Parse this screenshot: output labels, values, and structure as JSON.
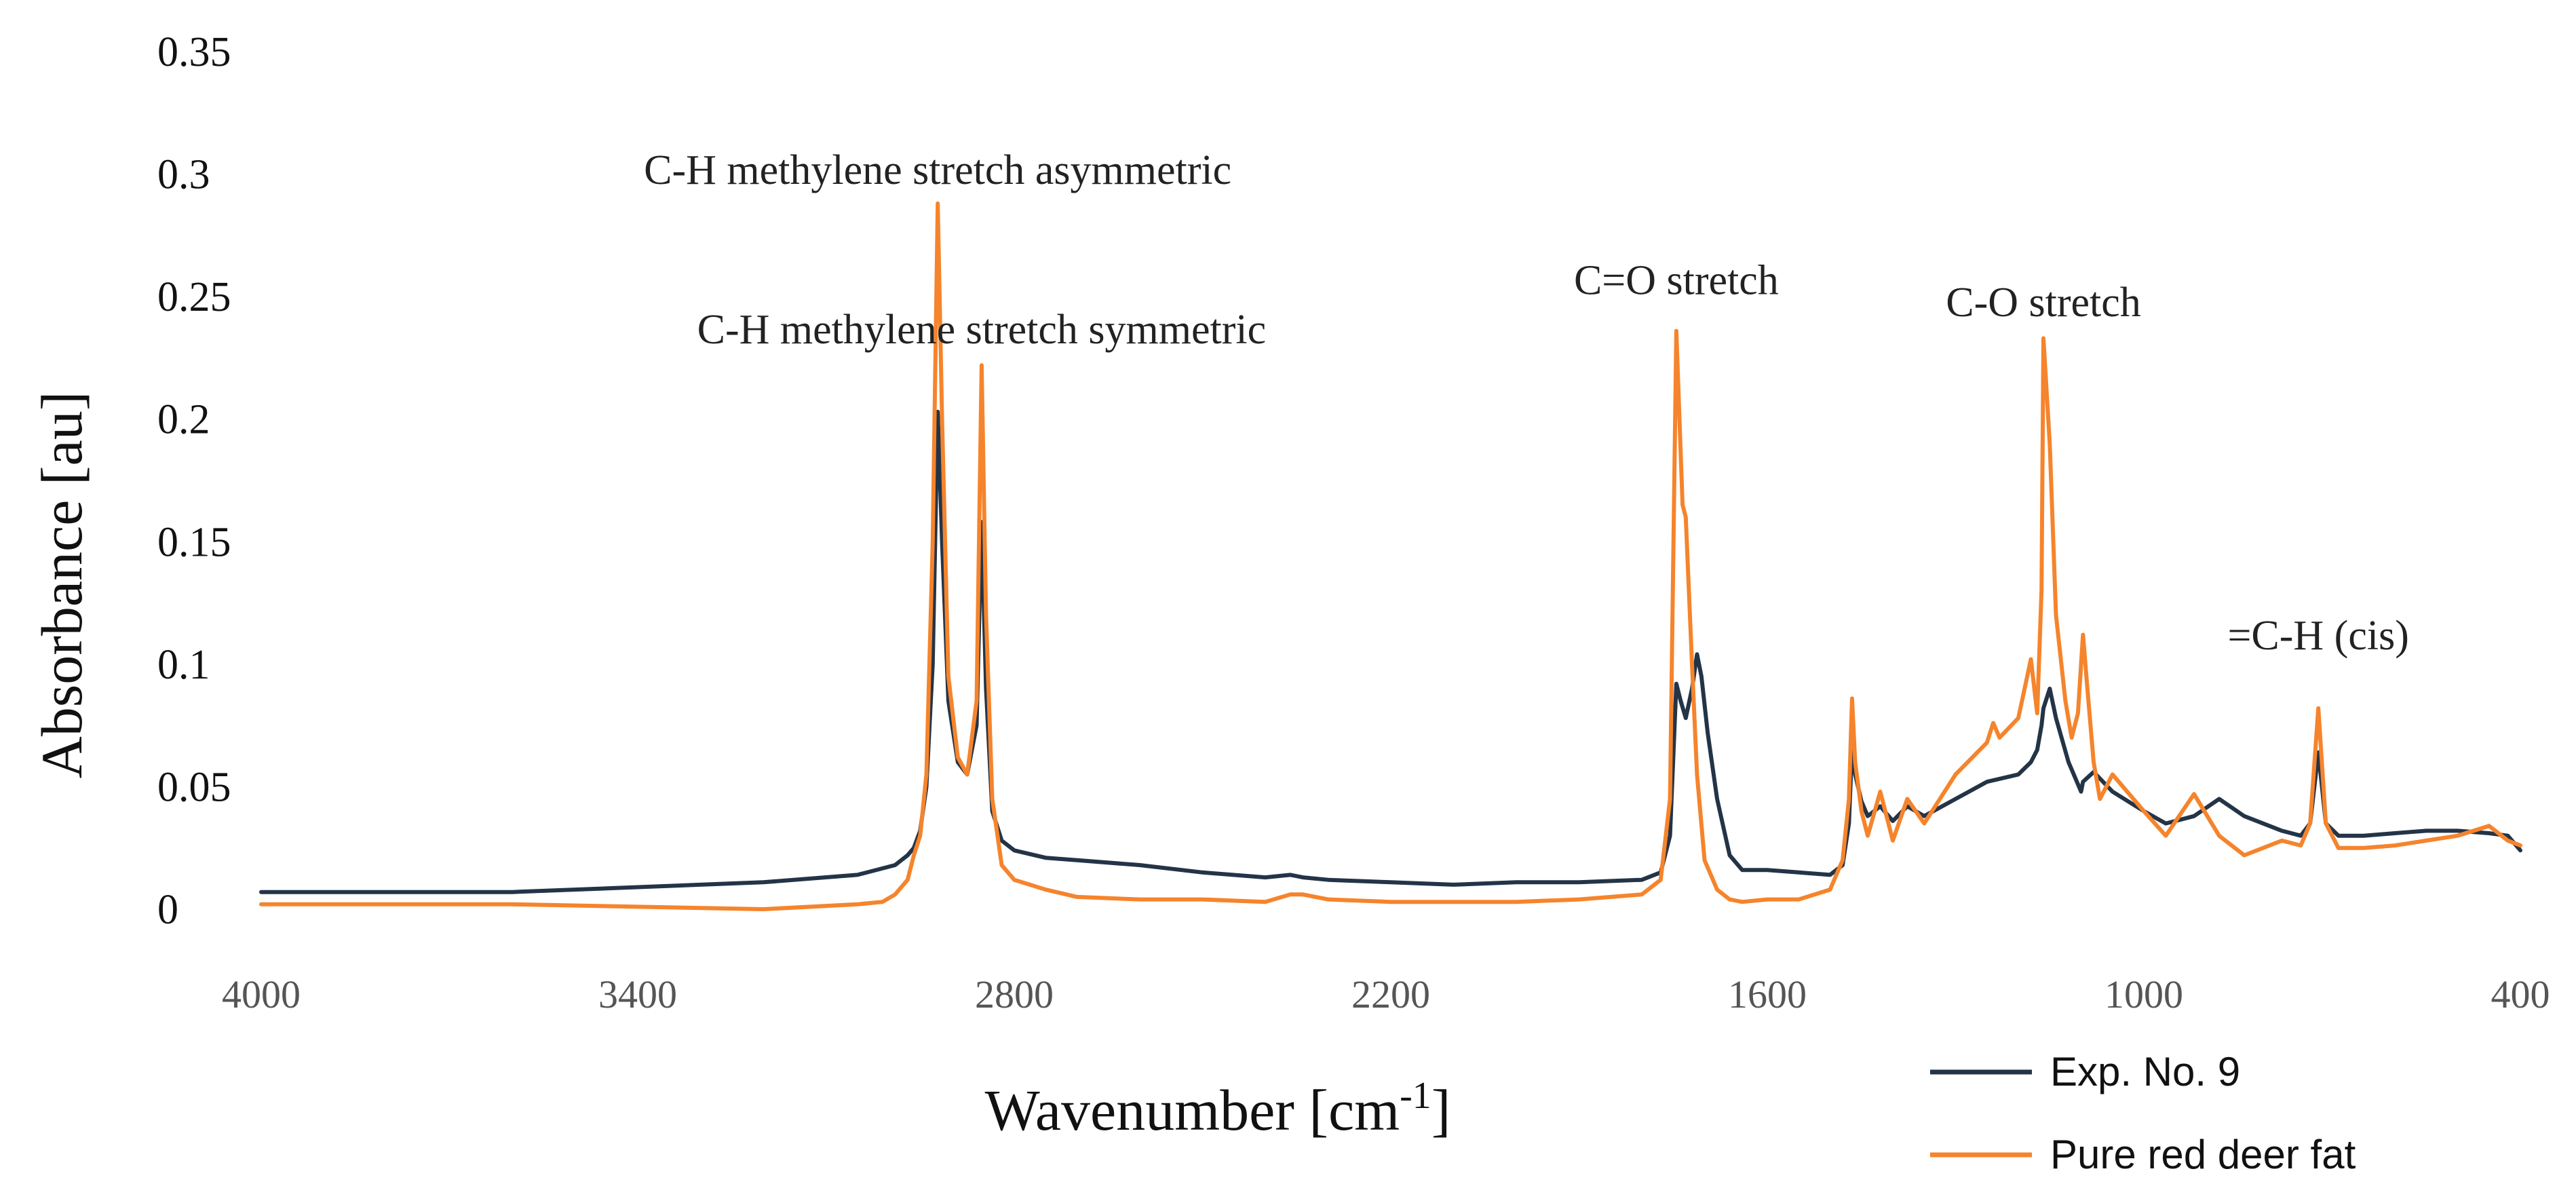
{
  "chart_data": {
    "type": "line",
    "xlabel": "Wavenumber [cm-1]",
    "xlabel_main": "Wavenumber [cm",
    "xlabel_sup": "-1",
    "xlabel_end": "]",
    "ylabel": "Absorbance [au]",
    "xlim": [
      4000,
      400
    ],
    "ylim": [
      0,
      0.35
    ],
    "x_ticks": [
      "4000",
      "3400",
      "2800",
      "2200",
      "1600",
      "1000",
      "400"
    ],
    "y_ticks": [
      "0",
      "0.05",
      "0.1",
      "0.15",
      "0.2",
      "0.25",
      "0.3",
      "0.35"
    ],
    "grid": false,
    "legend_position": "bottom-right",
    "annotations": [
      {
        "text": "C-H methylene stretch asymmetric",
        "x": 2922,
        "y": 0.296
      },
      {
        "text": "C-H methylene stretch symmetric",
        "x": 2852,
        "y": 0.231
      },
      {
        "text": "C=O stretch",
        "x": 1745,
        "y": 0.251
      },
      {
        "text": "C-O stretch",
        "x": 1160,
        "y": 0.242
      },
      {
        "text": "=C-H (cis)",
        "x": 722,
        "y": 0.106
      }
    ],
    "series": [
      {
        "name": "Exp. No. 9",
        "color": "#243447",
        "x": [
          4000,
          3800,
          3600,
          3400,
          3200,
          3050,
          2990,
          2970,
          2960,
          2950,
          2940,
          2930,
          2922,
          2915,
          2905,
          2890,
          2875,
          2860,
          2852,
          2845,
          2835,
          2820,
          2800,
          2750,
          2700,
          2600,
          2500,
          2400,
          2360,
          2340,
          2300,
          2200,
          2100,
          2000,
          1900,
          1800,
          1770,
          1755,
          1745,
          1738,
          1730,
          1720,
          1712,
          1705,
          1695,
          1680,
          1660,
          1640,
          1600,
          1550,
          1500,
          1480,
          1470,
          1465,
          1460,
          1450,
          1440,
          1420,
          1400,
          1377,
          1350,
          1300,
          1250,
          1200,
          1180,
          1170,
          1163,
          1160,
          1150,
          1140,
          1120,
          1100,
          1097,
          1080,
          1050,
          1000,
          965,
          920,
          880,
          840,
          780,
          750,
          735,
          722,
          710,
          690,
          650,
          600,
          550,
          500,
          450,
          420,
          400
        ],
        "values": [
          0.007,
          0.007,
          0.007,
          0.009,
          0.011,
          0.014,
          0.018,
          0.022,
          0.025,
          0.032,
          0.05,
          0.1,
          0.203,
          0.15,
          0.085,
          0.06,
          0.055,
          0.075,
          0.158,
          0.09,
          0.04,
          0.028,
          0.024,
          0.021,
          0.02,
          0.018,
          0.015,
          0.013,
          0.014,
          0.013,
          0.012,
          0.011,
          0.01,
          0.011,
          0.011,
          0.012,
          0.015,
          0.03,
          0.092,
          0.085,
          0.078,
          0.09,
          0.104,
          0.095,
          0.072,
          0.045,
          0.022,
          0.016,
          0.016,
          0.015,
          0.014,
          0.018,
          0.035,
          0.066,
          0.055,
          0.044,
          0.038,
          0.042,
          0.036,
          0.042,
          0.038,
          0.045,
          0.052,
          0.055,
          0.06,
          0.065,
          0.075,
          0.082,
          0.09,
          0.078,
          0.06,
          0.048,
          0.052,
          0.056,
          0.048,
          0.04,
          0.035,
          0.038,
          0.045,
          0.038,
          0.032,
          0.03,
          0.035,
          0.064,
          0.035,
          0.03,
          0.03,
          0.031,
          0.032,
          0.032,
          0.031,
          0.03,
          0.024
        ]
      },
      {
        "name": "Pure red deer fat",
        "color": "#f5842c",
        "x": [
          4000,
          3800,
          3600,
          3400,
          3200,
          3050,
          3010,
          2990,
          2970,
          2960,
          2950,
          2940,
          2930,
          2922,
          2915,
          2905,
          2890,
          2875,
          2860,
          2852,
          2845,
          2835,
          2820,
          2800,
          2750,
          2700,
          2600,
          2500,
          2400,
          2360,
          2340,
          2300,
          2200,
          2100,
          2000,
          1900,
          1800,
          1770,
          1755,
          1745,
          1740,
          1735,
          1730,
          1720,
          1712,
          1700,
          1680,
          1660,
          1640,
          1600,
          1550,
          1500,
          1480,
          1470,
          1465,
          1460,
          1450,
          1440,
          1420,
          1400,
          1377,
          1350,
          1300,
          1250,
          1240,
          1230,
          1200,
          1180,
          1170,
          1163,
          1160,
          1150,
          1140,
          1125,
          1115,
          1105,
          1100,
          1097,
          1090,
          1080,
          1070,
          1050,
          1000,
          965,
          920,
          880,
          840,
          780,
          750,
          735,
          722,
          710,
          690,
          650,
          600,
          550,
          500,
          450,
          420,
          400
        ],
        "values": [
          0.002,
          0.002,
          0.002,
          0.001,
          0.0,
          0.002,
          0.003,
          0.006,
          0.012,
          0.022,
          0.03,
          0.055,
          0.15,
          0.288,
          0.2,
          0.095,
          0.062,
          0.055,
          0.085,
          0.222,
          0.12,
          0.045,
          0.018,
          0.012,
          0.008,
          0.005,
          0.004,
          0.004,
          0.003,
          0.006,
          0.006,
          0.004,
          0.003,
          0.003,
          0.003,
          0.004,
          0.006,
          0.012,
          0.045,
          0.236,
          0.2,
          0.165,
          0.16,
          0.1,
          0.055,
          0.02,
          0.008,
          0.004,
          0.003,
          0.004,
          0.004,
          0.008,
          0.02,
          0.045,
          0.086,
          0.06,
          0.04,
          0.03,
          0.048,
          0.028,
          0.045,
          0.035,
          0.055,
          0.068,
          0.076,
          0.07,
          0.078,
          0.102,
          0.08,
          0.13,
          0.233,
          0.19,
          0.12,
          0.085,
          0.07,
          0.08,
          0.1,
          0.112,
          0.09,
          0.06,
          0.045,
          0.055,
          0.04,
          0.03,
          0.047,
          0.03,
          0.022,
          0.028,
          0.026,
          0.035,
          0.082,
          0.035,
          0.025,
          0.025,
          0.026,
          0.028,
          0.03,
          0.034,
          0.028,
          0.026
        ]
      }
    ]
  }
}
